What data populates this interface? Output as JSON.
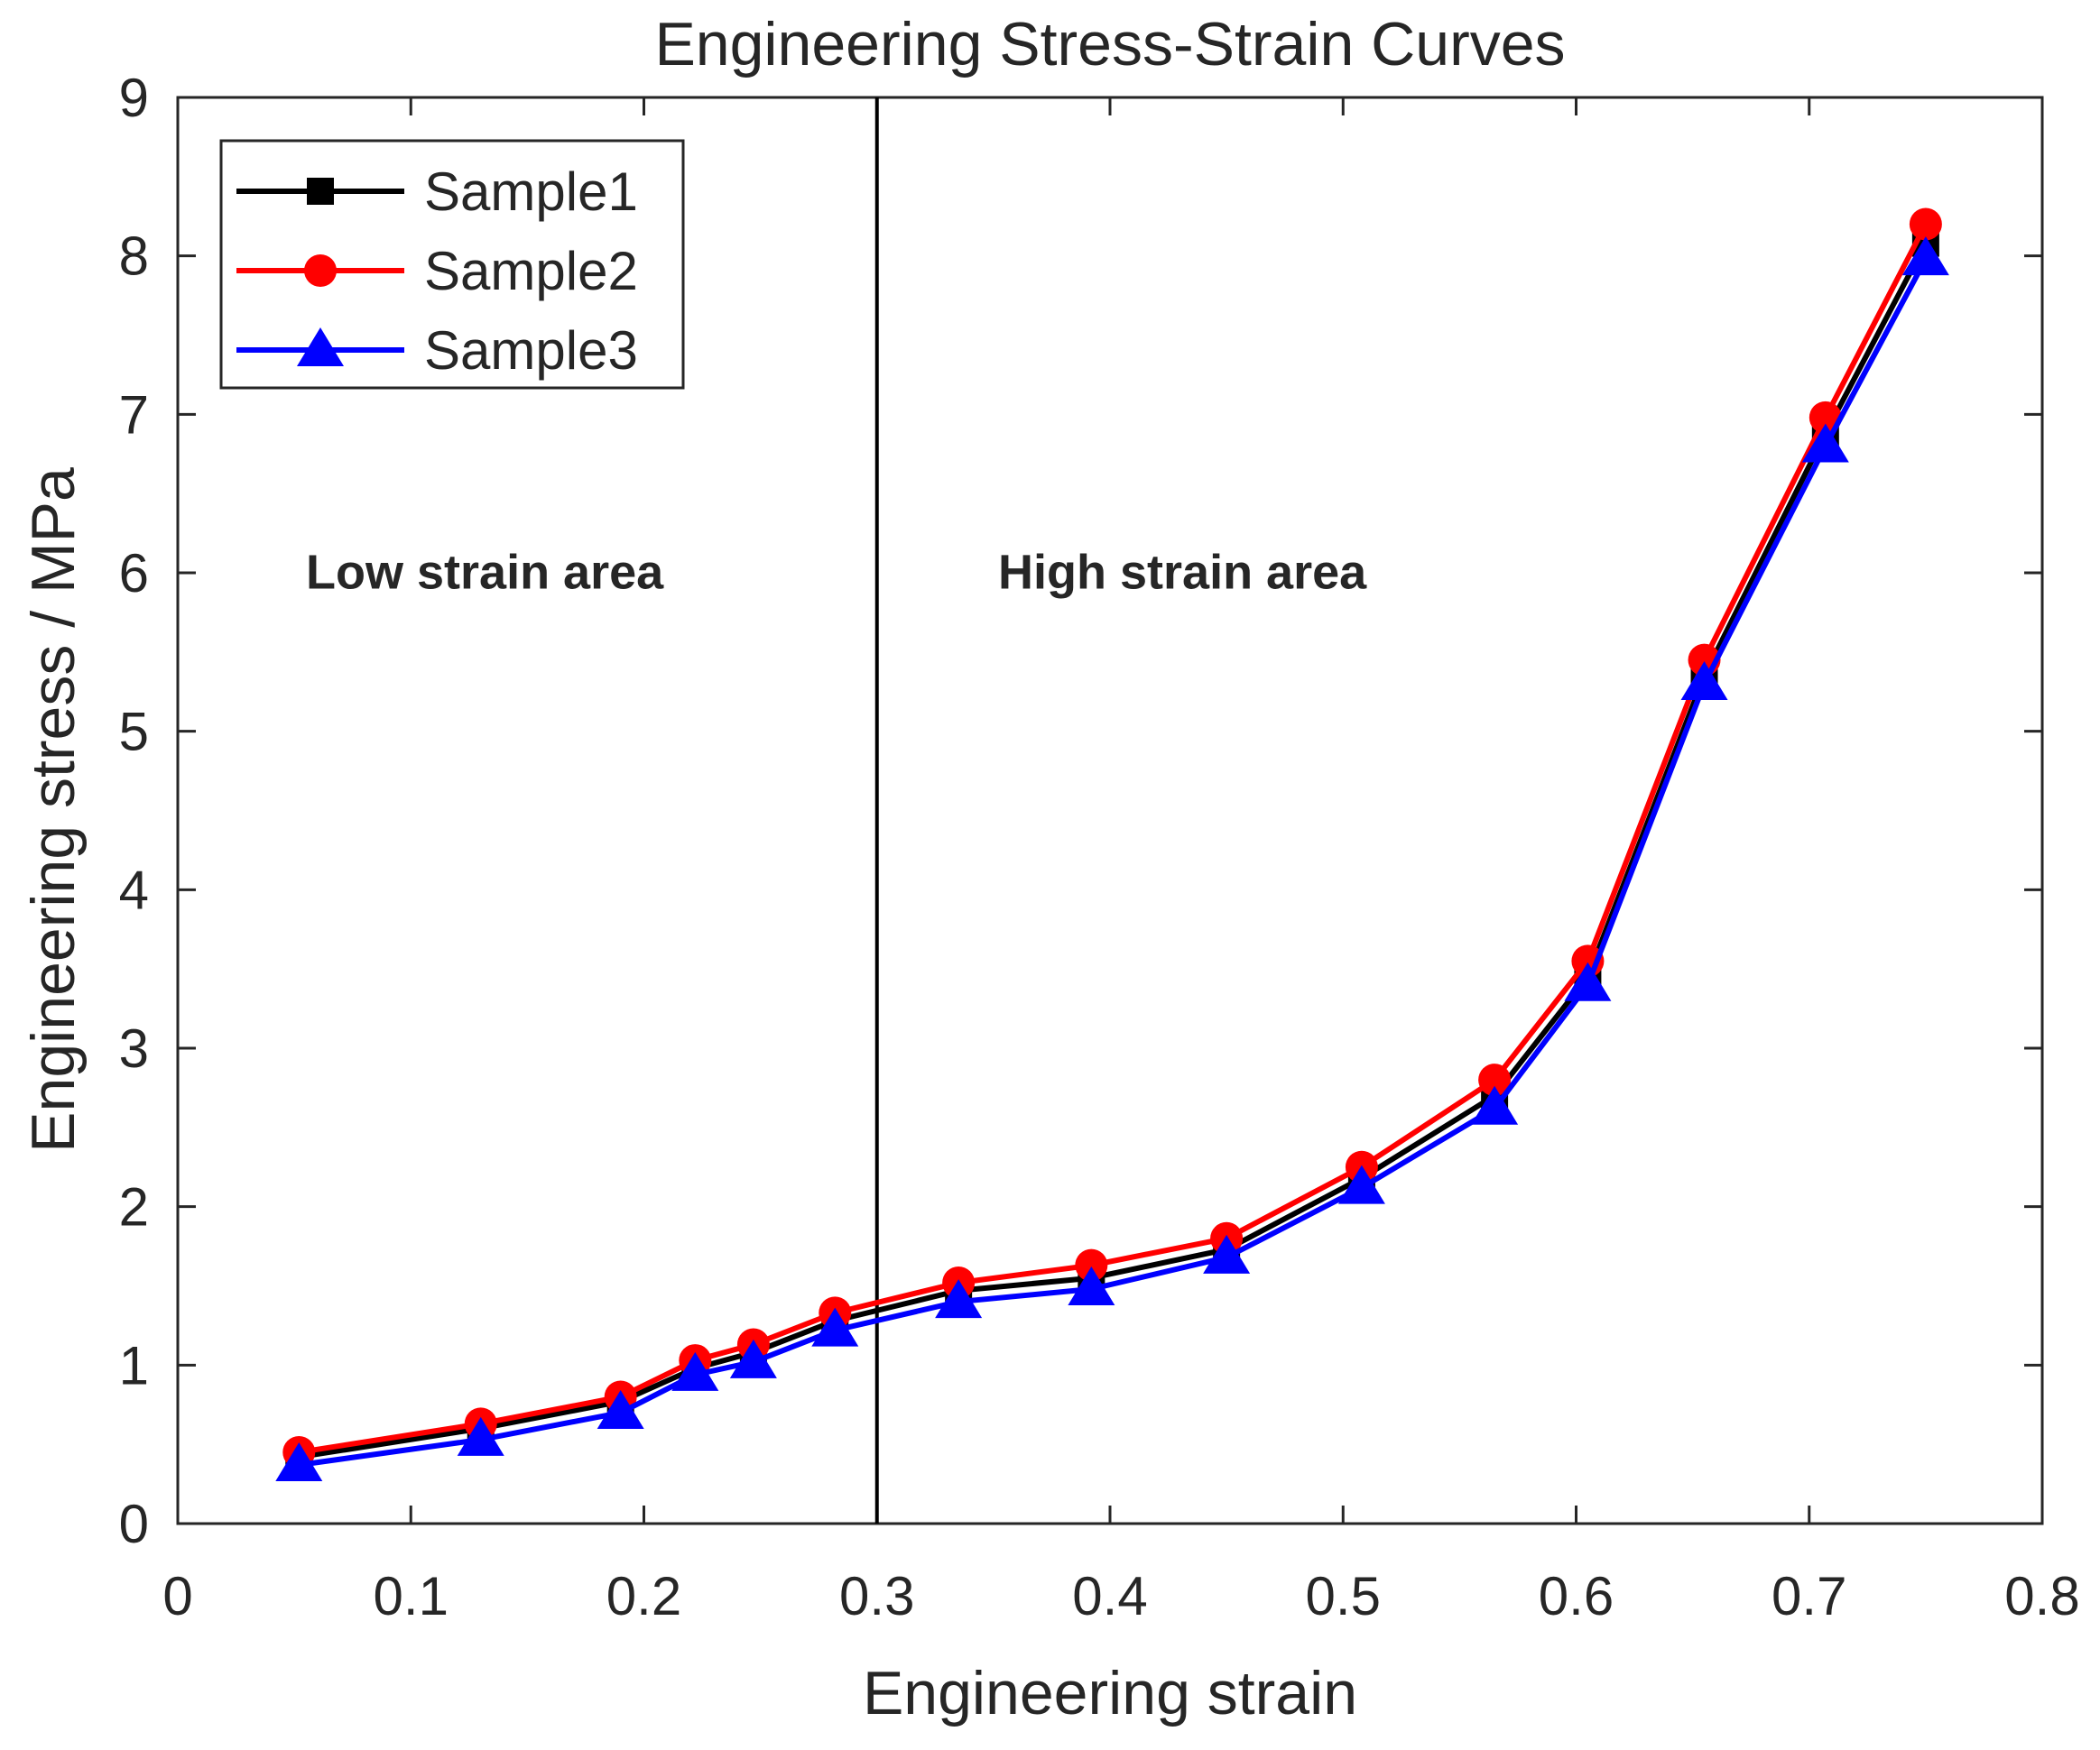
{
  "chart_data": {
    "type": "line",
    "title": "Engineering Stress-Strain Curves",
    "xlabel": "Engineering strain",
    "ylabel": "Engineering stress / MPa",
    "xlim": [
      0,
      0.8
    ],
    "ylim": [
      0,
      9
    ],
    "xticks": [
      "0",
      "0.1",
      "0.2",
      "0.3",
      "0.4",
      "0.5",
      "0.6",
      "0.7",
      "0.8"
    ],
    "yticks": [
      "0",
      "1",
      "2",
      "3",
      "4",
      "5",
      "6",
      "7",
      "8",
      "9"
    ],
    "grid": false,
    "legend_position": "top-left",
    "x": [
      0.052,
      0.13,
      0.19,
      0.222,
      0.247,
      0.282,
      0.335,
      0.392,
      0.45,
      0.508,
      0.565,
      0.605,
      0.655,
      0.707,
      0.75
    ],
    "series": [
      {
        "name": "Sample1",
        "color": "#000000",
        "marker": "square",
        "values": [
          0.42,
          0.6,
          0.77,
          0.98,
          1.08,
          1.28,
          1.47,
          1.55,
          1.73,
          2.18,
          2.7,
          3.45,
          5.35,
          6.88,
          8.08
        ]
      },
      {
        "name": "Sample2",
        "color": "#ff0000",
        "marker": "circle",
        "values": [
          0.45,
          0.63,
          0.8,
          1.03,
          1.13,
          1.33,
          1.52,
          1.63,
          1.8,
          2.25,
          2.8,
          3.55,
          5.45,
          6.98,
          8.2
        ]
      },
      {
        "name": "Sample3",
        "color": "#0000ff",
        "marker": "triangle",
        "values": [
          0.37,
          0.53,
          0.7,
          0.94,
          1.02,
          1.22,
          1.4,
          1.48,
          1.68,
          2.12,
          2.62,
          3.4,
          5.3,
          6.8,
          7.98
        ]
      }
    ],
    "vertical_line": {
      "x": 0.3
    },
    "annotations": [
      {
        "text": "Low strain area",
        "x": 0.055,
        "y": 5.9
      },
      {
        "text": "High strain area",
        "x": 0.352,
        "y": 5.9
      }
    ]
  }
}
